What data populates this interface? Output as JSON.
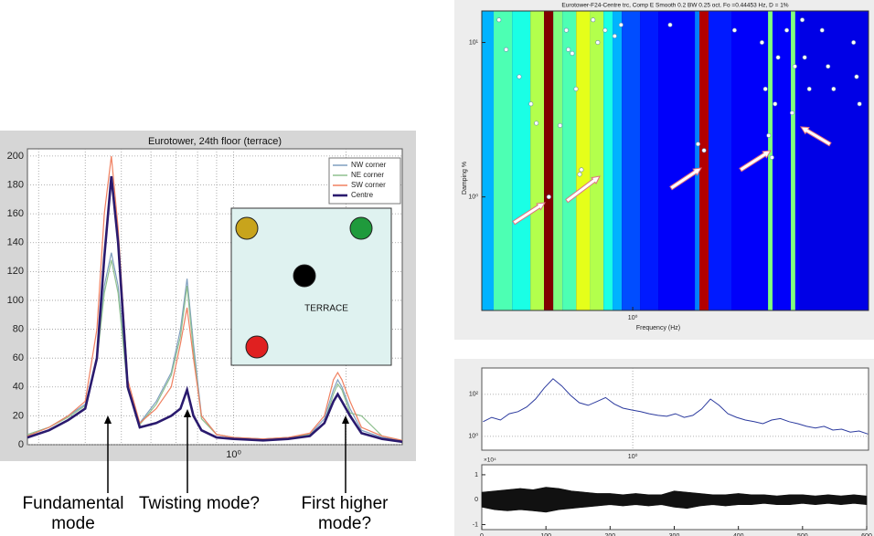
{
  "chart_data": [
    {
      "type": "line",
      "title": "Eurotower, 24th floor (terrace)",
      "x": [
        0.28,
        0.32,
        0.36,
        0.4,
        0.43,
        0.45,
        0.47,
        0.49,
        0.52,
        0.56,
        0.62,
        0.68,
        0.72,
        0.75,
        0.78,
        0.82,
        0.9,
        1.0,
        1.2,
        1.4,
        1.6,
        1.75,
        1.85,
        1.9,
        1.95,
        2.05,
        2.2,
        2.5,
        2.83
      ],
      "series": [
        {
          "name": "NW corner",
          "color": "#7f9fbf",
          "values": [
            7,
            12,
            20,
            28,
            60,
            110,
            133,
            110,
            40,
            15,
            30,
            50,
            80,
            115,
            70,
            20,
            7,
            5,
            4,
            5,
            7,
            18,
            38,
            45,
            40,
            25,
            10,
            5,
            3
          ]
        },
        {
          "name": "NE corner",
          "color": "#8fc08f",
          "values": [
            7,
            12,
            19,
            27,
            58,
            105,
            128,
            105,
            38,
            14,
            28,
            48,
            75,
            110,
            65,
            18,
            7,
            5,
            4,
            5,
            7,
            15,
            35,
            42,
            38,
            22,
            20,
            6,
            3
          ]
        },
        {
          "name": "SW corner",
          "color": "#f08060",
          "values": [
            6,
            12,
            20,
            30,
            80,
            160,
            200,
            150,
            45,
            15,
            25,
            40,
            70,
            95,
            60,
            20,
            7,
            5,
            4,
            5,
            8,
            20,
            45,
            50,
            45,
            30,
            12,
            6,
            3
          ]
        },
        {
          "name": "Centre",
          "color": "#2a1a6e",
          "values": [
            5,
            10,
            17,
            25,
            60,
            130,
            186,
            140,
            40,
            12,
            15,
            20,
            25,
            38,
            20,
            10,
            5,
            4,
            3,
            4,
            6,
            15,
            30,
            35,
            30,
            20,
            8,
            4,
            2
          ]
        }
      ],
      "xscale": "log",
      "xlim": [
        0.28,
        2.83
      ],
      "xticks": [
        {
          "value": 1,
          "label": "10⁰"
        }
      ],
      "x_minor_ticks": [
        0.3,
        0.4,
        0.5,
        0.6,
        0.7,
        0.8,
        0.9,
        2
      ],
      "ylim": [
        0,
        205
      ],
      "yticks": [
        0,
        20,
        40,
        60,
        80,
        100,
        120,
        140,
        160,
        180,
        200
      ],
      "grid": true,
      "legend": "upper right",
      "inset": {
        "label": "TERRACE"
      },
      "annotations": [
        "Fundamental mode",
        "Twisting mode?",
        "First higher mode?"
      ]
    },
    {
      "type": "heatmap",
      "title": "Eurotower-F24-Centre trc, Comp E   Smooth 0.2   BW 0.25 oct.        Fo =0.44453 Hz,   D = 1%",
      "xlabel": "Frequency (Hz)",
      "ylabel": "Damping %",
      "band_edges": [
        0.257,
        0.286,
        0.338,
        0.398,
        0.45,
        0.489,
        0.531,
        0.601,
        0.679,
        0.769,
        0.834,
        0.906,
        1.068,
        1.259,
        1.75,
        1.823,
        1.979,
        2.43,
        3.38,
        3.52,
        3.67,
        4.15,
        4.32,
        4.5,
        8.35
      ],
      "intensity": [
        0.3,
        0.45,
        0.4,
        0.55,
        1.0,
        0.5,
        0.45,
        0.6,
        0.55,
        0.4,
        0.3,
        0.2,
        0.15,
        0.12,
        0.25,
        0.95,
        0.15,
        0.12,
        0.5,
        0.12,
        0.12,
        0.5,
        0.12,
        0.1
      ],
      "colormap": "jet",
      "points": {
        "color": "#ffffff",
        "x": [
          0.3,
          0.32,
          0.36,
          0.4,
          0.42,
          0.47,
          0.52,
          0.55,
          0.56,
          0.58,
          0.62,
          0.63,
          0.6,
          0.7,
          0.73,
          0.78,
          0.85,
          0.9,
          1.4,
          1.8,
          1.9,
          2.5,
          3.2,
          3.3,
          3.4,
          3.5,
          3.6,
          3.7,
          4.0,
          4.2,
          4.3,
          4.6,
          4.7,
          4.9,
          5.5,
          5.8,
          6.1,
          7.3,
          7.5,
          7.7
        ],
        "y": [
          14,
          9,
          6,
          4,
          3,
          1.0,
          2.9,
          12,
          9,
          8.5,
          1.4,
          1.5,
          5,
          14,
          10,
          12,
          11,
          13,
          13,
          2.2,
          2.0,
          12,
          10,
          5,
          2.5,
          1.8,
          4,
          8,
          12,
          3.5,
          7,
          14,
          8,
          5,
          12,
          7,
          5,
          10,
          6,
          4
        ]
      },
      "xscale": "log",
      "xlim": [
        0.257,
        8.35
      ],
      "xticks": [
        {
          "value": 1,
          "label": "10⁰"
        }
      ],
      "yscale": "log",
      "ylim": [
        0.184,
        16
      ],
      "yticks": [
        {
          "value": 1,
          "label": "10⁰"
        },
        {
          "value": 10,
          "label": "10¹"
        }
      ]
    },
    {
      "type": "line",
      "x": [
        0.26,
        0.281,
        0.304,
        0.329,
        0.356,
        0.385,
        0.417,
        0.451,
        0.488,
        0.528,
        0.571,
        0.618,
        0.669,
        0.723,
        0.783,
        0.847,
        0.916,
        0.991,
        1.072,
        1.16,
        1.255,
        1.358,
        1.469,
        1.589,
        1.719,
        1.86,
        2.012,
        2.177,
        2.355,
        2.548,
        2.757,
        2.983,
        3.227,
        3.491,
        3.777,
        4.086,
        4.421,
        4.783,
        5.175,
        5.599,
        6.057,
        6.553,
        7.09,
        7.67,
        8.3
      ],
      "series": [
        {
          "color": "#2b3a9e",
          "values": [
            5,
            8,
            6,
            12,
            15,
            25,
            60,
            200,
            550,
            250,
            90,
            40,
            30,
            45,
            70,
            35,
            22,
            18,
            15,
            12,
            10,
            9,
            12,
            8,
            10,
            20,
            60,
            30,
            12,
            8,
            6,
            5,
            4,
            6,
            7,
            5,
            4,
            3,
            2.5,
            3,
            2,
            2.2,
            1.6,
            1.8,
            1.3
          ]
        }
      ],
      "xscale": "log",
      "xlim": [
        0.257,
        8.35
      ],
      "xticks": [
        {
          "value": 1,
          "label": "10⁰"
        }
      ],
      "yscale": "log",
      "ylim": [
        0.22,
        1800
      ],
      "yticks": [
        {
          "value": 1,
          "label": "10⁰"
        },
        {
          "value": 100,
          "label": "10²"
        }
      ],
      "grid": true
    },
    {
      "type": "band",
      "x": [
        0,
        20,
        40,
        60,
        80,
        100,
        120,
        140,
        160,
        180,
        200,
        220,
        240,
        260,
        280,
        300,
        320,
        340,
        360,
        380,
        400,
        420,
        440,
        460,
        480,
        500,
        520,
        540,
        560,
        580,
        600
      ],
      "upper": [
        0.3,
        0.35,
        0.4,
        0.45,
        0.4,
        0.5,
        0.45,
        0.35,
        0.3,
        0.25,
        0.25,
        0.2,
        0.25,
        0.2,
        0.2,
        0.35,
        0.3,
        0.25,
        0.2,
        0.2,
        0.25,
        0.2,
        0.2,
        0.15,
        0.2,
        0.2,
        0.15,
        0.2,
        0.15,
        0.2,
        0.15
      ],
      "lower": [
        -0.3,
        -0.4,
        -0.45,
        -0.4,
        -0.45,
        -0.5,
        -0.4,
        -0.35,
        -0.3,
        -0.25,
        -0.2,
        -0.25,
        -0.2,
        -0.25,
        -0.2,
        -0.3,
        -0.35,
        -0.25,
        -0.2,
        -0.25,
        -0.2,
        -0.2,
        -0.15,
        -0.2,
        -0.2,
        -0.15,
        -0.2,
        -0.15,
        -0.2,
        -0.15,
        -0.2
      ],
      "color": "#111111",
      "xlim": [
        0,
        600
      ],
      "xticks": [
        0,
        100,
        200,
        300,
        400,
        500,
        600
      ],
      "ylim": [
        -1.2,
        1.4
      ],
      "yticks": [
        -1,
        0,
        1
      ],
      "y_multiplier": "×10⁴"
    }
  ]
}
